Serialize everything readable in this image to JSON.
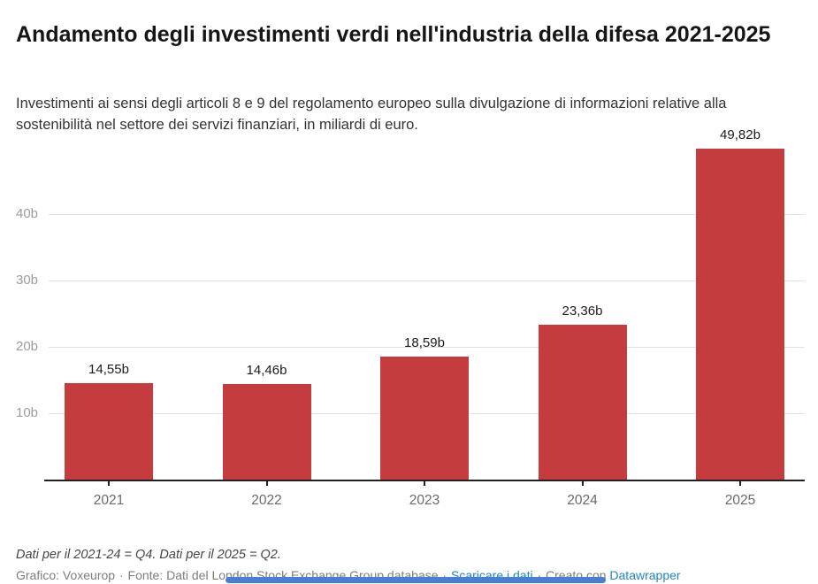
{
  "header": {
    "title": "Andamento degli investimenti verdi nell'industria della difesa 2021-2025",
    "description": "Investimenti ai sensi degli articoli 8 e 9 del regolamento europeo sulla divulgazione di informazioni relative alla sostenibilità nel settore dei servizi finanziari, in miliardi di euro."
  },
  "chart_data": {
    "type": "bar",
    "title": "Andamento degli investimenti verdi nell'industria della difesa 2021-2025",
    "categories": [
      "2021",
      "2022",
      "2023",
      "2024",
      "2025"
    ],
    "values": [
      14.55,
      14.46,
      18.59,
      23.36,
      49.82
    ],
    "value_labels": [
      "14,55b",
      "14,46b",
      "18,59b",
      "23,36b",
      "49,82b"
    ],
    "unit": "miliardi di euro",
    "xlabel": "",
    "ylabel": "",
    "ylim": [
      0,
      50
    ],
    "y_ticks": [
      10,
      20,
      30,
      40
    ],
    "y_tick_labels": [
      "10b",
      "20b",
      "30b",
      "40b"
    ],
    "grid": "horizontal",
    "legend": "none",
    "bar_color": "#c43c3e"
  },
  "footer": {
    "notes": "Dati per il 2021-24 = Q4. Dati per il 2025 = Q2.",
    "byline": "Grafico: Voxeurop",
    "source": "Fonte: Dati del London Stock Exchange Group database",
    "download_link": "Scaricare i dati",
    "created_with": "Creato con",
    "datawrapper_link": "Datawrapper",
    "sep": "·"
  },
  "colors": {
    "bar": "#c43c3e",
    "link_blue": "#2286c3",
    "gridline": "#e2e2e2",
    "axis_line": "#212121",
    "axis_text": "#9c9c9c",
    "scrollbar_blue": "#4580d2"
  }
}
